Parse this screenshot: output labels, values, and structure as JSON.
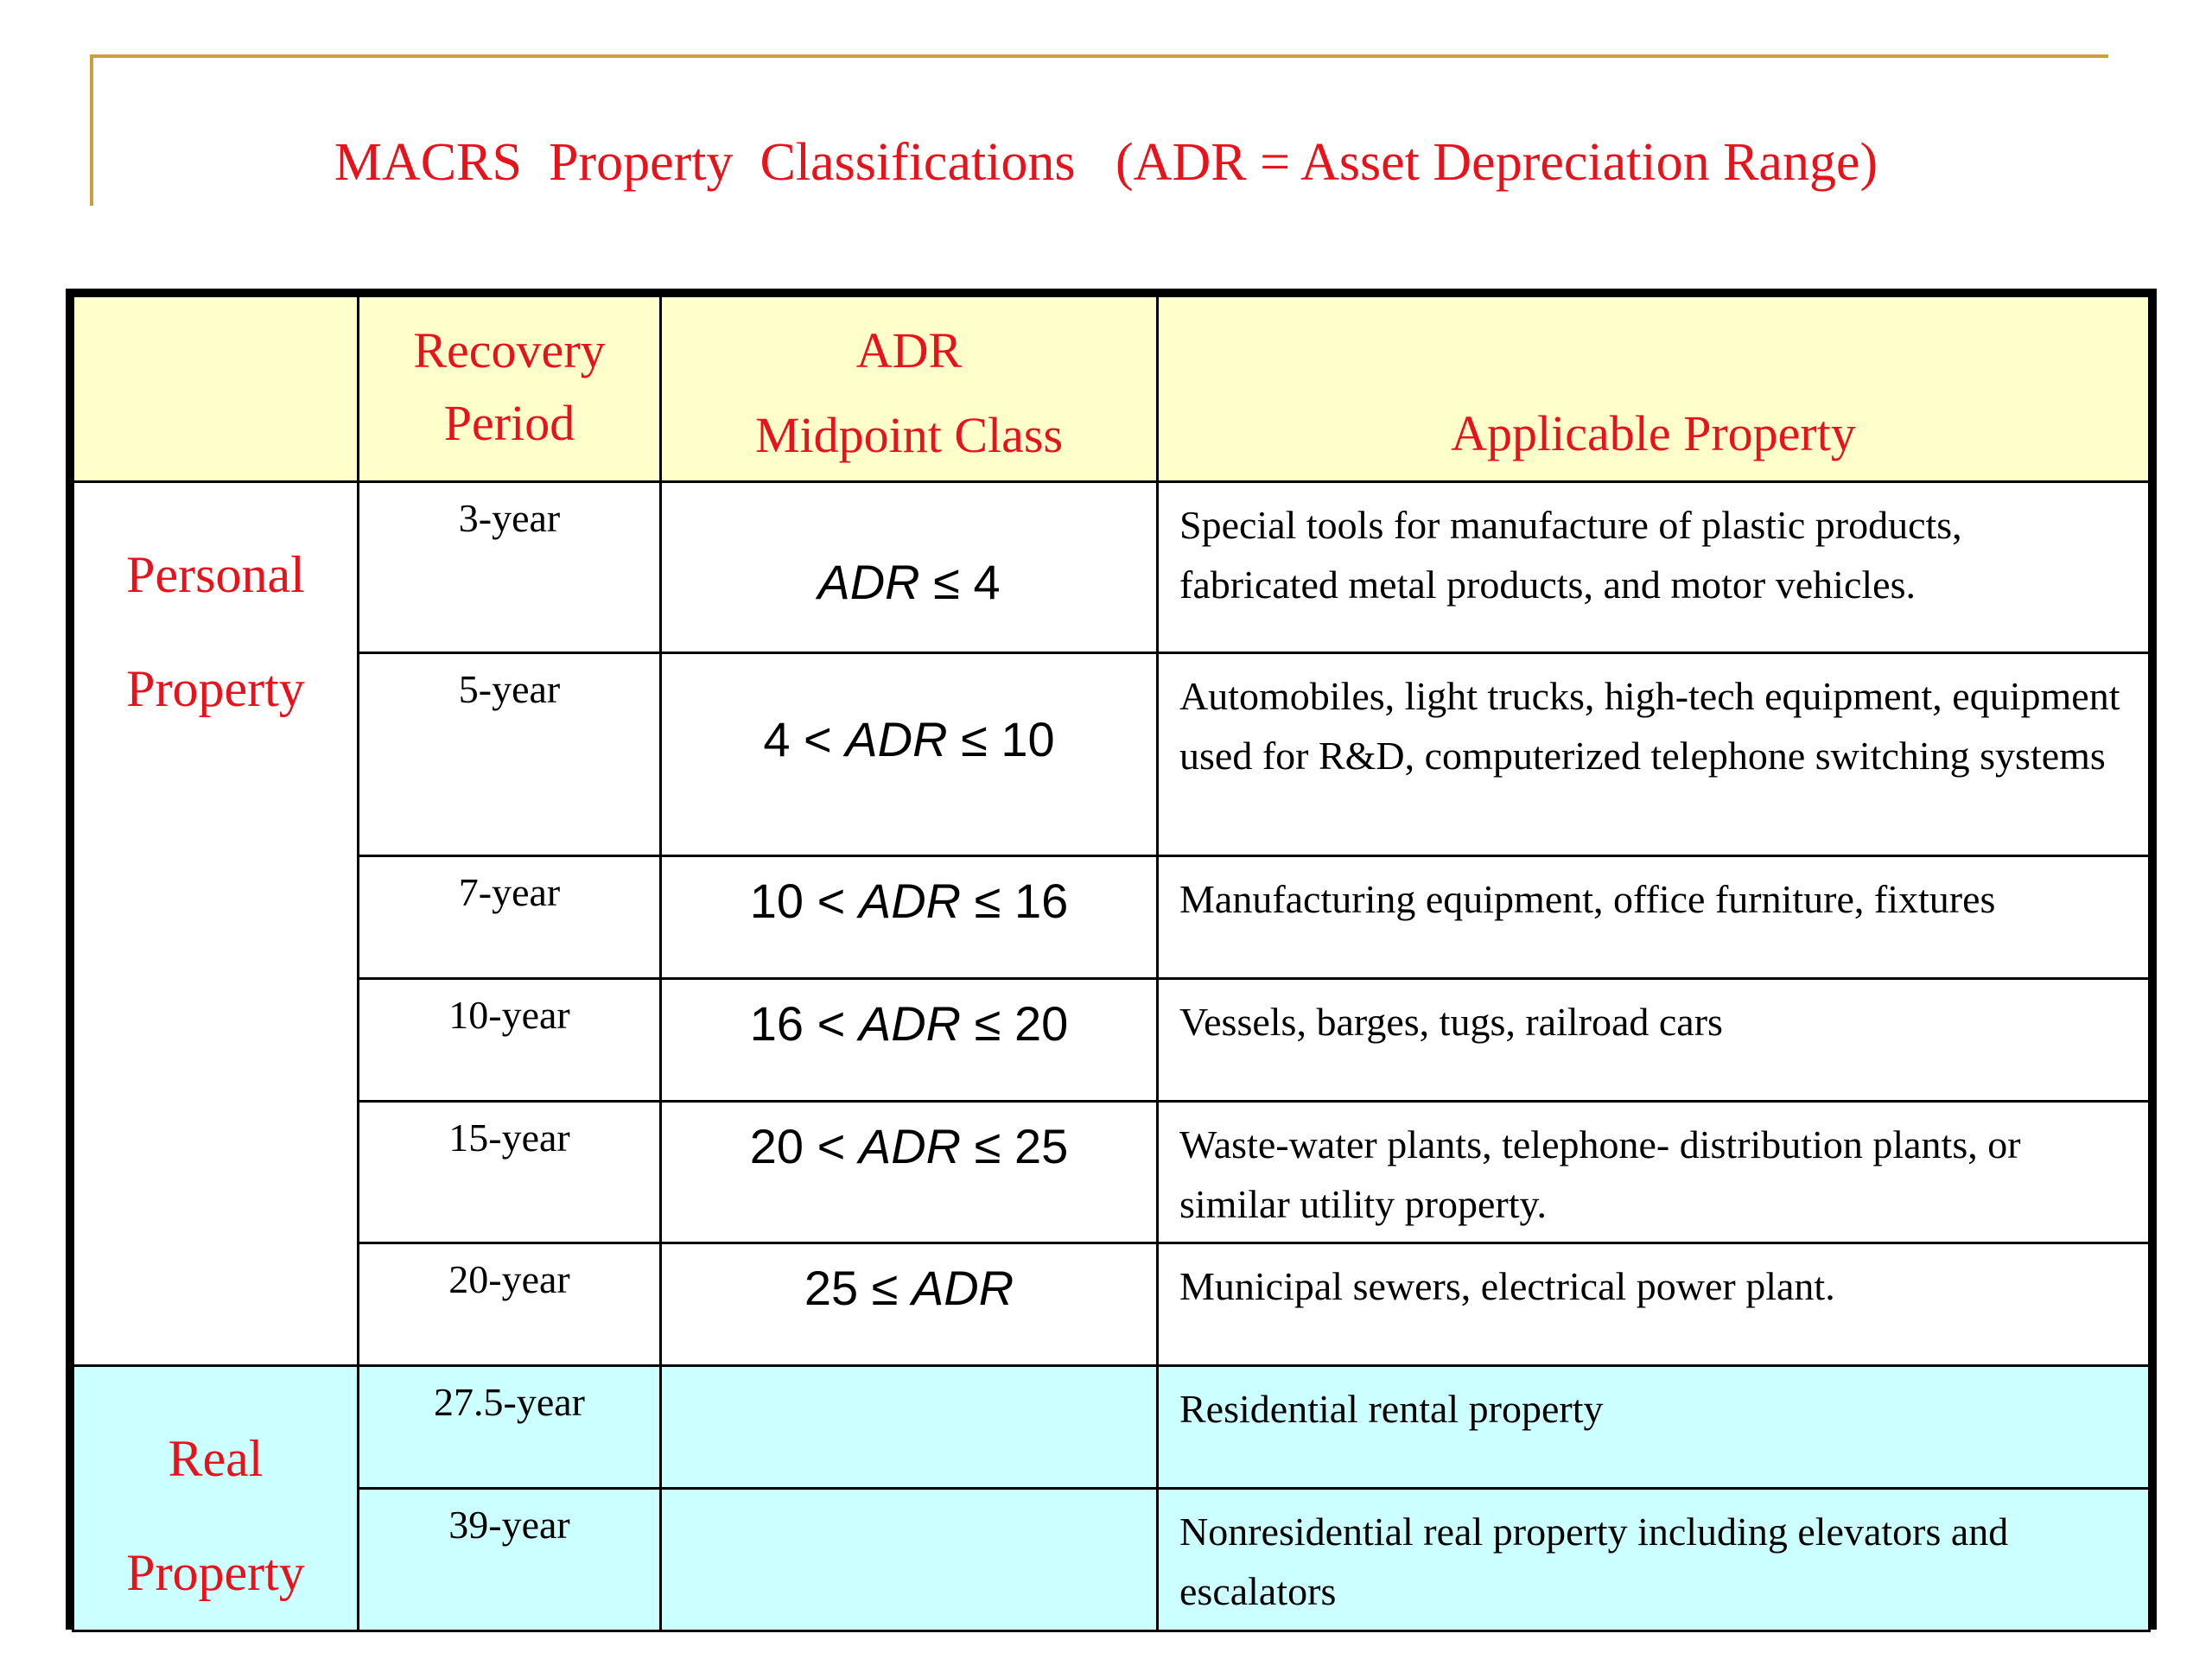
{
  "title": "MACRS  Property  Classifications   (ADR = Asset Depreciation Range)",
  "columns": {
    "recovery_line1": "Recovery",
    "recovery_line2": "Period",
    "adr_line1": "ADR",
    "adr_line2": "Midpoint Class",
    "applicable": "Applicable Property"
  },
  "categories": {
    "personal_line1": "Personal",
    "personal_line2": "Property",
    "real_line1": "Real",
    "real_line2": "Property"
  },
  "rows": [
    {
      "period": "3-year",
      "adr_pre": "",
      "adr_var": "ADR",
      "adr_post": " ≤ 4",
      "property": "Special tools for manufacture of plastic products, fabricated metal products, and motor vehicles."
    },
    {
      "period": "5-year",
      "adr_pre": "4 < ",
      "adr_var": "ADR",
      "adr_post": " ≤ 10",
      "property": "Automobiles, light trucks, high-tech equipment, equipment used for R&D, computerized telephone switching systems"
    },
    {
      "period": "7-year",
      "adr_pre": "10 < ",
      "adr_var": "ADR",
      "adr_post": " ≤ 16",
      "property": "Manufacturing equipment, office furniture, fixtures"
    },
    {
      "period": "10-year",
      "adr_pre": "16 < ",
      "adr_var": "ADR",
      "adr_post": " ≤ 20",
      "property": "Vessels, barges, tugs, railroad cars"
    },
    {
      "period": "15-year",
      "adr_pre": "20 < ",
      "adr_var": "ADR",
      "adr_post": " ≤ 25",
      "property": "Waste-water plants, telephone- distribution plants, or similar utility property."
    },
    {
      "period": "20-year",
      "adr_pre": "25 ≤ ",
      "adr_var": "ADR",
      "adr_post": "",
      "property": "Municipal sewers, electrical power plant."
    },
    {
      "period": "27.5-year",
      "property": "Residential rental property"
    },
    {
      "period": "39-year",
      "property": "Nonresidential real property including elevators and escalators"
    }
  ],
  "colors": {
    "title_red": "#e8121b",
    "gold_line": "#c8a13a",
    "header_bg": "#ffffcc",
    "real_bg": "#ccffff"
  }
}
